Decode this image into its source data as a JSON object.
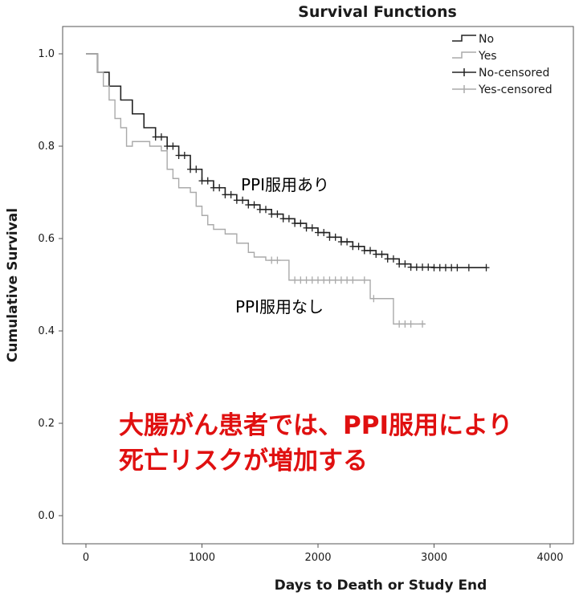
{
  "chart_data": {
    "type": "line",
    "title": "Survival Functions",
    "xlabel": "Days to Death or Study End",
    "ylabel": "Cumulative Survival",
    "xlim": [
      0,
      4000
    ],
    "ylim": [
      0.0,
      1.0
    ],
    "x_ticks": [
      "0",
      "1000",
      "2000",
      "3000",
      "4000"
    ],
    "y_ticks": [
      "0.0",
      "0.2",
      "0.4",
      "0.6",
      "0.8",
      "1.0"
    ],
    "legend_position": "top-right",
    "legend": [
      {
        "label": "No",
        "style": "line",
        "color": "#222222"
      },
      {
        "label": "Yes",
        "style": "line",
        "color": "#aaaaaa"
      },
      {
        "label": "No-censored",
        "style": "cross",
        "color": "#222222"
      },
      {
        "label": "Yes-censored",
        "style": "cross",
        "color": "#aaaaaa"
      }
    ],
    "series": [
      {
        "name": "No",
        "color": "#222222",
        "x": [
          0,
          100,
          200,
          300,
          400,
          500,
          600,
          700,
          800,
          900,
          1000,
          1100,
          1200,
          1300,
          1400,
          1500,
          1600,
          1700,
          1800,
          1900,
          2000,
          2100,
          2200,
          2300,
          2400,
          2500,
          2600,
          2700,
          2800,
          3000,
          3200,
          3450
        ],
        "y": [
          1.0,
          0.96,
          0.93,
          0.9,
          0.87,
          0.84,
          0.82,
          0.8,
          0.78,
          0.75,
          0.725,
          0.71,
          0.695,
          0.683,
          0.673,
          0.663,
          0.653,
          0.643,
          0.633,
          0.623,
          0.613,
          0.603,
          0.593,
          0.583,
          0.574,
          0.566,
          0.556,
          0.545,
          0.538,
          0.537,
          0.537,
          0.537
        ],
        "censored_x": [
          600,
          650,
          700,
          750,
          800,
          850,
          900,
          950,
          1000,
          1050,
          1100,
          1150,
          1200,
          1250,
          1300,
          1350,
          1400,
          1450,
          1500,
          1550,
          1600,
          1650,
          1700,
          1750,
          1800,
          1850,
          1900,
          1950,
          2000,
          2050,
          2100,
          2150,
          2200,
          2250,
          2300,
          2350,
          2400,
          2450,
          2500,
          2550,
          2600,
          2650,
          2700,
          2750,
          2800,
          2850,
          2900,
          2950,
          3000,
          3050,
          3100,
          3150,
          3200,
          3300,
          3450
        ]
      },
      {
        "name": "Yes",
        "color": "#aaaaaa",
        "x": [
          0,
          100,
          150,
          200,
          250,
          300,
          350,
          400,
          550,
          650,
          700,
          750,
          800,
          900,
          950,
          1000,
          1050,
          1100,
          1150,
          1200,
          1300,
          1400,
          1450,
          1550,
          1750,
          2450,
          2650,
          2920
        ],
        "y": [
          1.0,
          0.96,
          0.93,
          0.9,
          0.86,
          0.84,
          0.8,
          0.81,
          0.8,
          0.79,
          0.75,
          0.73,
          0.71,
          0.7,
          0.67,
          0.65,
          0.63,
          0.62,
          0.62,
          0.61,
          0.59,
          0.57,
          0.56,
          0.553,
          0.51,
          0.47,
          0.415,
          0.415
        ],
        "censored_x": [
          1600,
          1650,
          1800,
          1850,
          1900,
          1950,
          2000,
          2050,
          2100,
          2150,
          2200,
          2250,
          2300,
          2400,
          2480,
          2700,
          2750,
          2800,
          2900
        ]
      }
    ]
  },
  "annotations": {
    "with_ppi": "PPI服用あり",
    "without_ppi": "PPI服用なし",
    "note_line1": "大腸がん患者では、PPI服用により",
    "note_line2": "死亡リスクが増加する"
  }
}
